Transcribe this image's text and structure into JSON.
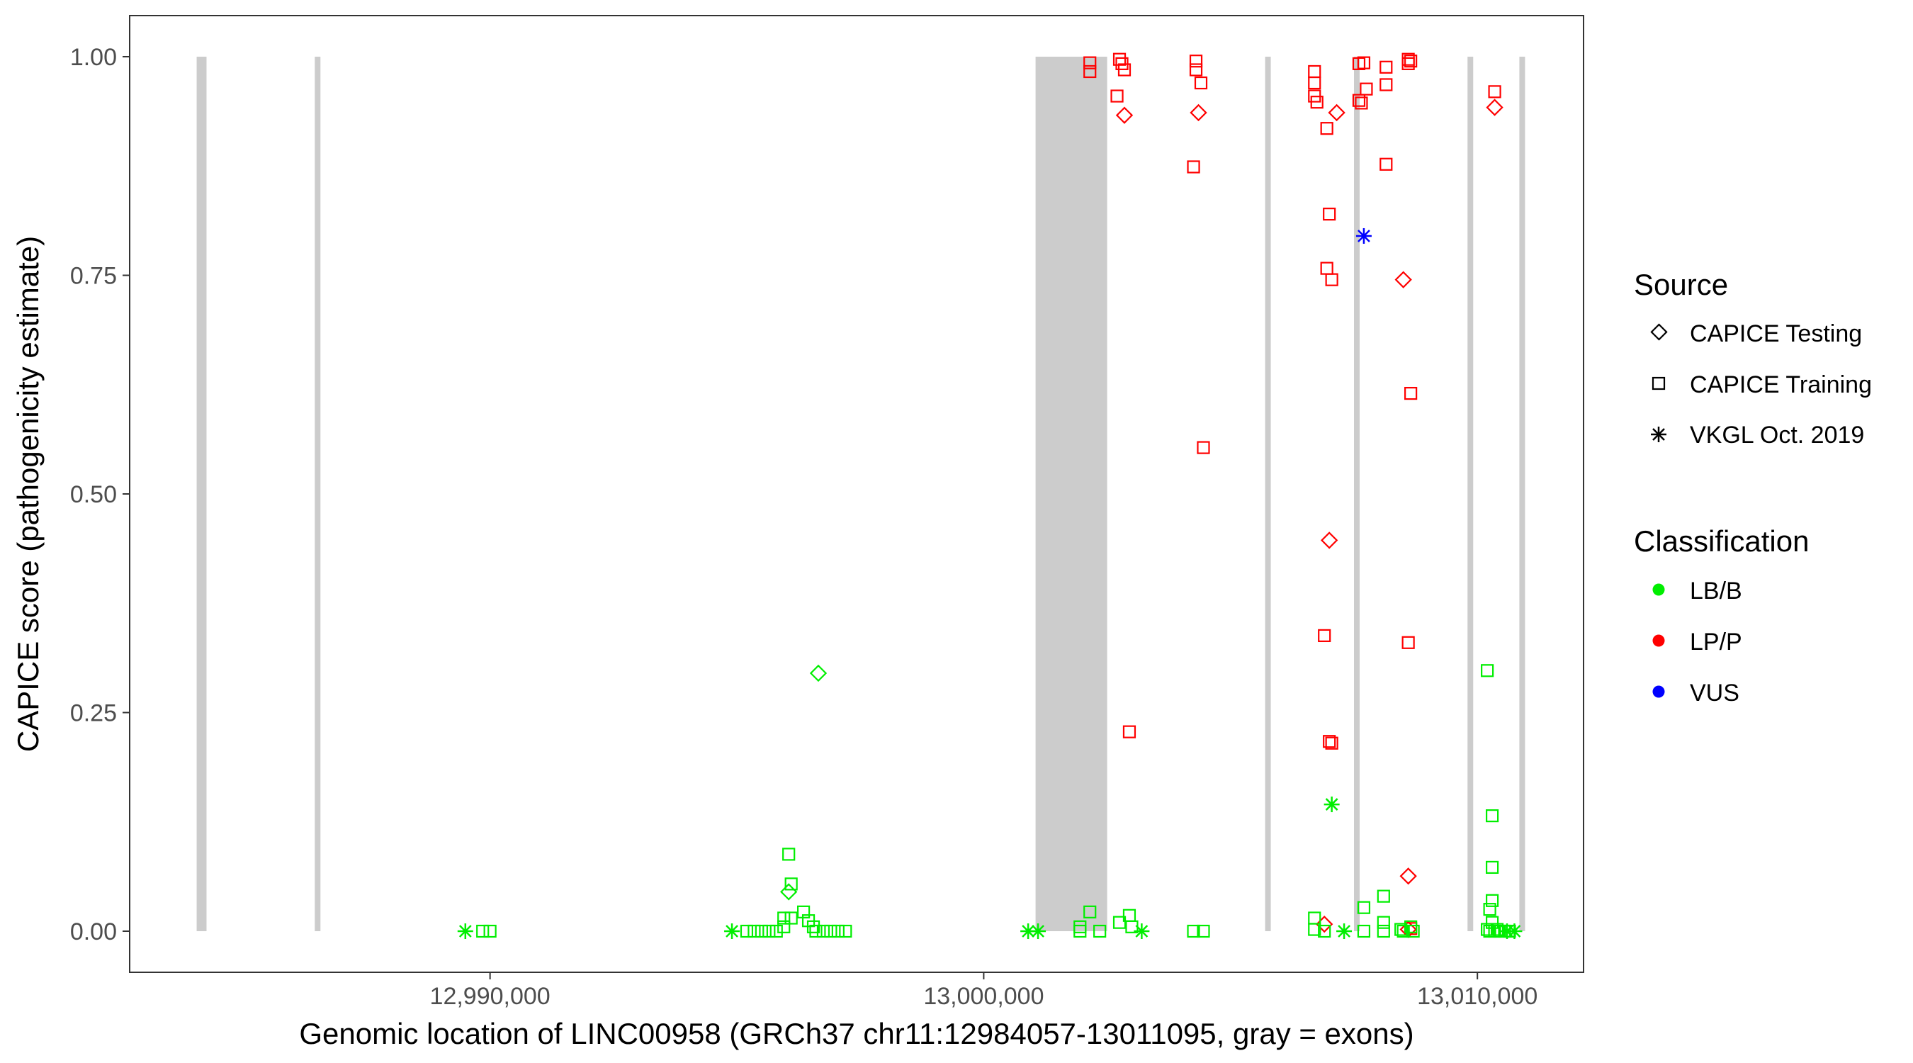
{
  "chart_data": {
    "type": "scatter",
    "xlabel": "Genomic location of LINC00958 (GRCh37 chr11:12984057-13011095, gray = exons)",
    "ylabel": "CAPICE score (pathogenicity estimate)",
    "xlim": [
      12982700,
      13012150
    ],
    "ylim": [
      -0.047,
      1.047
    ],
    "x_ticks": [
      12990000,
      13000000,
      13010000
    ],
    "x_tick_labels": [
      "12,990,000",
      "13,000,000",
      "13,010,000"
    ],
    "y_ticks": [
      0,
      0.25,
      0.5,
      0.75,
      1
    ],
    "y_tick_labels": [
      "0.00",
      "0.25",
      "0.50",
      "0.75",
      "1.00"
    ],
    "grid": false,
    "legend_position": "right",
    "colors": {
      "LB/B": "#00ee00",
      "LP/P": "#ff0000",
      "VUS": "#0000ff",
      "exon": "#cccccc"
    },
    "exons": [
      [
        12984057,
        12984257
      ],
      [
        12986450,
        12986550
      ],
      [
        13001050,
        13002500
      ],
      [
        13005700,
        13005800
      ],
      [
        13007500,
        13007600
      ],
      [
        13009800,
        13009900
      ],
      [
        13010850,
        13010950
      ]
    ],
    "legend": {
      "source": {
        "title": "Source",
        "items": [
          {
            "label": "CAPICE Testing",
            "shape": "diamond"
          },
          {
            "label": "CAPICE Training",
            "shape": "square"
          },
          {
            "label": "VKGL Oct. 2019",
            "shape": "asterisk"
          }
        ]
      },
      "classification": {
        "title": "Classification",
        "items": [
          {
            "label": "LB/B",
            "color": "#00ee00"
          },
          {
            "label": "LP/P",
            "color": "#ff0000"
          },
          {
            "label": "VUS",
            "color": "#0000ff"
          }
        ]
      }
    },
    "points": [
      {
        "x": 12989500,
        "y": 0,
        "source": "VKGL Oct. 2019",
        "class": "LB/B"
      },
      {
        "x": 12989850,
        "y": 0,
        "source": "CAPICE Training",
        "class": "LB/B"
      },
      {
        "x": 12990000,
        "y": 0,
        "source": "CAPICE Training",
        "class": "LB/B"
      },
      {
        "x": 12994900,
        "y": 0,
        "source": "VKGL Oct. 2019",
        "class": "LB/B"
      },
      {
        "x": 12995200,
        "y": 0,
        "source": "CAPICE Training",
        "class": "LB/B"
      },
      {
        "x": 12995350,
        "y": 0,
        "source": "CAPICE Training",
        "class": "LB/B"
      },
      {
        "x": 12995500,
        "y": 0,
        "source": "CAPICE Training",
        "class": "LB/B"
      },
      {
        "x": 12995650,
        "y": 0,
        "source": "CAPICE Training",
        "class": "LB/B"
      },
      {
        "x": 12995800,
        "y": 0,
        "source": "CAPICE Training",
        "class": "LB/B"
      },
      {
        "x": 12995950,
        "y": 0.005,
        "source": "CAPICE Training",
        "class": "LB/B"
      },
      {
        "x": 12995950,
        "y": 0.015,
        "source": "CAPICE Training",
        "class": "LB/B"
      },
      {
        "x": 12996050,
        "y": 0.088,
        "source": "CAPICE Training",
        "class": "LB/B"
      },
      {
        "x": 12996100,
        "y": 0.054,
        "source": "CAPICE Training",
        "class": "LB/B"
      },
      {
        "x": 12996050,
        "y": 0.045,
        "source": "CAPICE Testing",
        "class": "LB/B"
      },
      {
        "x": 12996100,
        "y": 0.015,
        "source": "CAPICE Training",
        "class": "LB/B"
      },
      {
        "x": 12996350,
        "y": 0.022,
        "source": "CAPICE Training",
        "class": "LB/B"
      },
      {
        "x": 12996450,
        "y": 0.012,
        "source": "CAPICE Training",
        "class": "LB/B"
      },
      {
        "x": 12996550,
        "y": 0.005,
        "source": "CAPICE Training",
        "class": "LB/B"
      },
      {
        "x": 12996600,
        "y": 0,
        "source": "CAPICE Training",
        "class": "LB/B"
      },
      {
        "x": 12996650,
        "y": 0.295,
        "source": "CAPICE Testing",
        "class": "LB/B"
      },
      {
        "x": 12996750,
        "y": 0,
        "source": "CAPICE Training",
        "class": "LB/B"
      },
      {
        "x": 12996900,
        "y": 0,
        "source": "CAPICE Training",
        "class": "LB/B"
      },
      {
        "x": 12997050,
        "y": 0,
        "source": "CAPICE Training",
        "class": "LB/B"
      },
      {
        "x": 12997200,
        "y": 0,
        "source": "CAPICE Training",
        "class": "LB/B"
      },
      {
        "x": 13000900,
        "y": 0,
        "source": "VKGL Oct. 2019",
        "class": "LB/B"
      },
      {
        "x": 13001100,
        "y": 0,
        "source": "VKGL Oct. 2019",
        "class": "LB/B"
      },
      {
        "x": 13001950,
        "y": 0.005,
        "source": "CAPICE Training",
        "class": "LB/B"
      },
      {
        "x": 13001950,
        "y": 0,
        "source": "CAPICE Training",
        "class": "LB/B"
      },
      {
        "x": 13002150,
        "y": 0.022,
        "source": "CAPICE Training",
        "class": "LB/B"
      },
      {
        "x": 13002350,
        "y": 0,
        "source": "CAPICE Training",
        "class": "LB/B"
      },
      {
        "x": 13002750,
        "y": 0.01,
        "source": "CAPICE Training",
        "class": "LB/B"
      },
      {
        "x": 13002950,
        "y": 0.018,
        "source": "CAPICE Training",
        "class": "LB/B"
      },
      {
        "x": 13003000,
        "y": 0.005,
        "source": "CAPICE Training",
        "class": "LB/B"
      },
      {
        "x": 13003200,
        "y": 0,
        "source": "VKGL Oct. 2019",
        "class": "LB/B"
      },
      {
        "x": 13004250,
        "y": 0,
        "source": "CAPICE Training",
        "class": "LB/B"
      },
      {
        "x": 13004450,
        "y": 0,
        "source": "CAPICE Training",
        "class": "LB/B"
      },
      {
        "x": 13002150,
        "y": 0.993,
        "source": "CAPICE Training",
        "class": "LP/P"
      },
      {
        "x": 13002150,
        "y": 0.983,
        "source": "CAPICE Training",
        "class": "LP/P"
      },
      {
        "x": 13002700,
        "y": 0.955,
        "source": "CAPICE Training",
        "class": "LP/P"
      },
      {
        "x": 13002750,
        "y": 0.997,
        "source": "CAPICE Training",
        "class": "LP/P"
      },
      {
        "x": 13002800,
        "y": 0.992,
        "source": "CAPICE Training",
        "class": "LP/P"
      },
      {
        "x": 13002850,
        "y": 0.985,
        "source": "CAPICE Training",
        "class": "LP/P"
      },
      {
        "x": 13002850,
        "y": 0.933,
        "source": "CAPICE Testing",
        "class": "LP/P"
      },
      {
        "x": 13002950,
        "y": 0.228,
        "source": "CAPICE Training",
        "class": "LP/P"
      },
      {
        "x": 13004250,
        "y": 0.874,
        "source": "CAPICE Training",
        "class": "LP/P"
      },
      {
        "x": 13004300,
        "y": 0.995,
        "source": "CAPICE Training",
        "class": "LP/P"
      },
      {
        "x": 13004300,
        "y": 0.985,
        "source": "CAPICE Training",
        "class": "LP/P"
      },
      {
        "x": 13004350,
        "y": 0.936,
        "source": "CAPICE Testing",
        "class": "LP/P"
      },
      {
        "x": 13004400,
        "y": 0.97,
        "source": "CAPICE Training",
        "class": "LP/P"
      },
      {
        "x": 13004450,
        "y": 0.553,
        "source": "CAPICE Training",
        "class": "LP/P"
      },
      {
        "x": 13006700,
        "y": 0.983,
        "source": "CAPICE Training",
        "class": "LP/P"
      },
      {
        "x": 13006700,
        "y": 0.97,
        "source": "CAPICE Training",
        "class": "LP/P"
      },
      {
        "x": 13006700,
        "y": 0.955,
        "source": "CAPICE Training",
        "class": "LP/P"
      },
      {
        "x": 13006750,
        "y": 0.948,
        "source": "CAPICE Training",
        "class": "LP/P"
      },
      {
        "x": 13006900,
        "y": 0.338,
        "source": "CAPICE Training",
        "class": "LP/P"
      },
      {
        "x": 13006950,
        "y": 0.918,
        "source": "CAPICE Training",
        "class": "LP/P"
      },
      {
        "x": 13006950,
        "y": 0.758,
        "source": "CAPICE Training",
        "class": "LP/P"
      },
      {
        "x": 13007000,
        "y": 0.82,
        "source": "CAPICE Training",
        "class": "LP/P"
      },
      {
        "x": 13007050,
        "y": 0.745,
        "source": "CAPICE Training",
        "class": "LP/P"
      },
      {
        "x": 13007000,
        "y": 0.447,
        "source": "CAPICE Testing",
        "class": "LP/P"
      },
      {
        "x": 13007000,
        "y": 0.217,
        "source": "CAPICE Training",
        "class": "LP/P"
      },
      {
        "x": 13007050,
        "y": 0.215,
        "source": "CAPICE Training",
        "class": "LP/P"
      },
      {
        "x": 13007150,
        "y": 0.936,
        "source": "CAPICE Testing",
        "class": "LP/P"
      },
      {
        "x": 13006900,
        "y": 0.008,
        "source": "CAPICE Testing",
        "class": "LP/P"
      },
      {
        "x": 13007600,
        "y": 0.992,
        "source": "CAPICE Training",
        "class": "LP/P"
      },
      {
        "x": 13007700,
        "y": 0.993,
        "source": "CAPICE Training",
        "class": "LP/P"
      },
      {
        "x": 13007600,
        "y": 0.95,
        "source": "CAPICE Training",
        "class": "LP/P"
      },
      {
        "x": 13007650,
        "y": 0.947,
        "source": "CAPICE Training",
        "class": "LP/P"
      },
      {
        "x": 13007750,
        "y": 0.963,
        "source": "CAPICE Training",
        "class": "LP/P"
      },
      {
        "x": 13008150,
        "y": 0.968,
        "source": "CAPICE Training",
        "class": "LP/P"
      },
      {
        "x": 13008150,
        "y": 0.988,
        "source": "CAPICE Training",
        "class": "LP/P"
      },
      {
        "x": 13008150,
        "y": 0.877,
        "source": "CAPICE Training",
        "class": "LP/P"
      },
      {
        "x": 13008500,
        "y": 0.745,
        "source": "CAPICE Testing",
        "class": "LP/P"
      },
      {
        "x": 13008600,
        "y": 0.997,
        "source": "CAPICE Training",
        "class": "LP/P"
      },
      {
        "x": 13008600,
        "y": 0.992,
        "source": "CAPICE Training",
        "class": "LP/P"
      },
      {
        "x": 13008650,
        "y": 0.995,
        "source": "CAPICE Training",
        "class": "LP/P"
      },
      {
        "x": 13008650,
        "y": 0.615,
        "source": "CAPICE Training",
        "class": "LP/P"
      },
      {
        "x": 13008600,
        "y": 0.33,
        "source": "CAPICE Training",
        "class": "LP/P"
      },
      {
        "x": 13008600,
        "y": 0.063,
        "source": "CAPICE Testing",
        "class": "LP/P"
      },
      {
        "x": 13008600,
        "y": 0.002,
        "source": "CAPICE Testing",
        "class": "LP/P"
      },
      {
        "x": 13008650,
        "y": 0.003,
        "source": "CAPICE Training",
        "class": "LP/P"
      },
      {
        "x": 13010350,
        "y": 0.96,
        "source": "CAPICE Training",
        "class": "LP/P"
      },
      {
        "x": 13010350,
        "y": 0.942,
        "source": "CAPICE Testing",
        "class": "LP/P"
      },
      {
        "x": 13007700,
        "y": 0.795,
        "source": "VKGL Oct. 2019",
        "class": "VUS"
      },
      {
        "x": 13006700,
        "y": 0.015,
        "source": "CAPICE Training",
        "class": "LB/B"
      },
      {
        "x": 13006700,
        "y": 0.002,
        "source": "CAPICE Training",
        "class": "LB/B"
      },
      {
        "x": 13006900,
        "y": 0,
        "source": "CAPICE Training",
        "class": "LB/B"
      },
      {
        "x": 13007050,
        "y": 0.145,
        "source": "VKGL Oct. 2019",
        "class": "LB/B"
      },
      {
        "x": 13007300,
        "y": 0,
        "source": "VKGL Oct. 2019",
        "class": "LB/B"
      },
      {
        "x": 13007700,
        "y": 0.027,
        "source": "CAPICE Training",
        "class": "LB/B"
      },
      {
        "x": 13007700,
        "y": 0,
        "source": "CAPICE Training",
        "class": "LB/B"
      },
      {
        "x": 13008100,
        "y": 0.04,
        "source": "CAPICE Training",
        "class": "LB/B"
      },
      {
        "x": 13008100,
        "y": 0.01,
        "source": "CAPICE Training",
        "class": "LB/B"
      },
      {
        "x": 13008100,
        "y": 0,
        "source": "CAPICE Training",
        "class": "LB/B"
      },
      {
        "x": 13008450,
        "y": 0.002,
        "source": "CAPICE Training",
        "class": "LB/B"
      },
      {
        "x": 13008500,
        "y": 0,
        "source": "CAPICE Training",
        "class": "LB/B"
      },
      {
        "x": 13008650,
        "y": 0.005,
        "source": "CAPICE Training",
        "class": "LB/B"
      },
      {
        "x": 13008700,
        "y": 0,
        "source": "CAPICE Training",
        "class": "LB/B"
      },
      {
        "x": 13010200,
        "y": 0.298,
        "source": "CAPICE Training",
        "class": "LB/B"
      },
      {
        "x": 13010300,
        "y": 0.132,
        "source": "CAPICE Training",
        "class": "LB/B"
      },
      {
        "x": 13010300,
        "y": 0.073,
        "source": "CAPICE Training",
        "class": "LB/B"
      },
      {
        "x": 13010300,
        "y": 0.035,
        "source": "CAPICE Training",
        "class": "LB/B"
      },
      {
        "x": 13010250,
        "y": 0.025,
        "source": "CAPICE Training",
        "class": "LB/B"
      },
      {
        "x": 13010300,
        "y": 0.01,
        "source": "CAPICE Training",
        "class": "LB/B"
      },
      {
        "x": 13010200,
        "y": 0.002,
        "source": "CAPICE Training",
        "class": "LB/B"
      },
      {
        "x": 13010250,
        "y": 0,
        "source": "CAPICE Training",
        "class": "LB/B"
      },
      {
        "x": 13010350,
        "y": 0,
        "source": "CAPICE Training",
        "class": "LB/B"
      },
      {
        "x": 13010400,
        "y": 0.002,
        "source": "CAPICE Training",
        "class": "LB/B"
      },
      {
        "x": 13010450,
        "y": 0,
        "source": "CAPICE Training",
        "class": "LB/B"
      },
      {
        "x": 13010550,
        "y": 0,
        "source": "CAPICE Training",
        "class": "LB/B"
      },
      {
        "x": 13010650,
        "y": 0,
        "source": "CAPICE Training",
        "class": "LB/B"
      },
      {
        "x": 13010600,
        "y": 0,
        "source": "VKGL Oct. 2019",
        "class": "LB/B"
      },
      {
        "x": 13010750,
        "y": 0,
        "source": "VKGL Oct. 2019",
        "class": "LB/B"
      }
    ]
  }
}
